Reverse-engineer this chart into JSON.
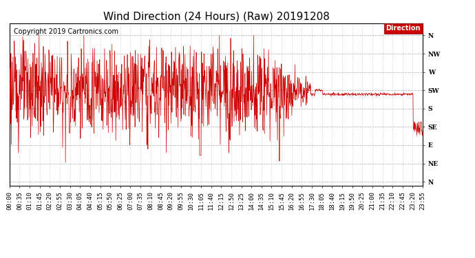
{
  "title": "Wind Direction (24 Hours) (Raw) 20191208",
  "copyright": "Copyright 2019 Cartronics.com",
  "legend_label": "Direction",
  "background_color": "#ffffff",
  "plot_bg_color": "#ffffff",
  "grid_color": "#aaaaaa",
  "line_color": "#cc0000",
  "ylabel_compass": [
    "N",
    "NW",
    "W",
    "SW",
    "S",
    "SE",
    "E",
    "NE",
    "N"
  ],
  "ytick_values": [
    360,
    315,
    270,
    225,
    180,
    135,
    90,
    45,
    0
  ],
  "ylim": [
    -10,
    390
  ],
  "title_fontsize": 11,
  "copyright_fontsize": 7,
  "tick_fontsize": 6.5,
  "x_tick_step_minutes": 35
}
